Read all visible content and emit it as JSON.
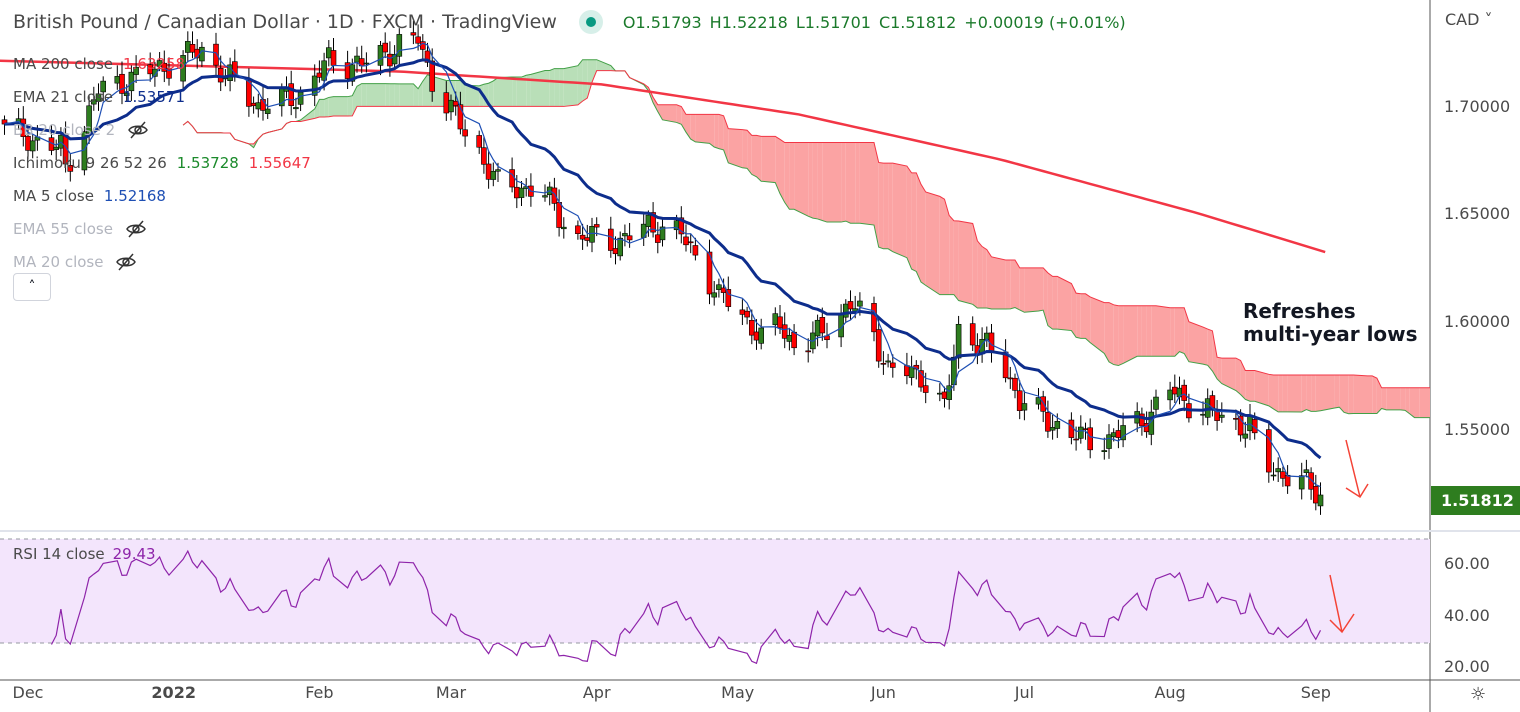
{
  "header": {
    "title": "British Pound / Canadian Dollar · 1D · FXCM · TradingView",
    "open": "O1.51793",
    "high": "H1.52218",
    "low": "L1.51701",
    "close": "C1.51812",
    "change": "+0.00019 (+0.01%)"
  },
  "legend": [
    {
      "label": "MA 200 close",
      "value": "1.63258",
      "color": "#f23645",
      "hidden": false
    },
    {
      "label": "EMA 21 close",
      "value": "1.53571",
      "color": "#0d2d8c",
      "hidden": false
    },
    {
      "label": "BB 20 close 2",
      "value": "",
      "hidden": true
    },
    {
      "label": "Ichimoku 9 26 52 26",
      "value": "1.53728",
      "value2": "1.55647",
      "hidden": false
    },
    {
      "label": "MA 5 close",
      "value": "1.52168",
      "color": "#1e4fb4",
      "hidden": false
    },
    {
      "label": "EMA 55 close",
      "value": "",
      "hidden": true
    },
    {
      "label": "MA 20 close",
      "value": "",
      "hidden": true
    }
  ],
  "currency": "CAD",
  "last_price": "1.51812",
  "annotation": "Refreshes multi-year lows",
  "rsi": {
    "label": "RSI 14 close",
    "value": "29.43",
    "ticks": [
      "60.00",
      "40.00",
      "20.00"
    ]
  },
  "colors": {
    "up": "#2e7d1f",
    "down": "#ff0000",
    "ma200": "#f23645",
    "ema21": "#0d2d8c",
    "ma5": "#1e4fb4",
    "rsi": "#8e24aa"
  },
  "chart_data": {
    "type": "candlestick",
    "title": "British Pound / Canadian Dollar · 1D",
    "x_unit": "days since 2021-12-01",
    "y_ticks": [
      "1.70000",
      "1.65000",
      "1.60000",
      "1.55000"
    ],
    "y_tick_values": [
      1.7,
      1.65,
      1.6,
      1.55
    ],
    "ylim": [
      1.507,
      1.75
    ],
    "x_ticks": [
      {
        "label": "Dec",
        "day": 0
      },
      {
        "label": "2022",
        "day": 31
      },
      {
        "label": "Feb",
        "day": 62
      },
      {
        "label": "Mar",
        "day": 90
      },
      {
        "label": "Apr",
        "day": 121
      },
      {
        "label": "May",
        "day": 151
      },
      {
        "label": "Jun",
        "day": 182
      },
      {
        "label": "Jul",
        "day": 212
      },
      {
        "label": "Aug",
        "day": 243
      },
      {
        "label": "Sep",
        "day": 274
      }
    ],
    "close_path": [
      [
        -5,
        1.69
      ],
      [
        7,
        1.681
      ],
      [
        8,
        1.672
      ],
      [
        15,
        1.708
      ],
      [
        26,
        1.717
      ],
      [
        37,
        1.727
      ],
      [
        43,
        1.713
      ],
      [
        49,
        1.701
      ],
      [
        58,
        1.706
      ],
      [
        64,
        1.722
      ],
      [
        71,
        1.72
      ],
      [
        79,
        1.729
      ],
      [
        83,
        1.732
      ],
      [
        86,
        1.713
      ],
      [
        92,
        1.692
      ],
      [
        96,
        1.68
      ],
      [
        100,
        1.664
      ],
      [
        109,
        1.662
      ],
      [
        117,
        1.639
      ],
      [
        122,
        1.641
      ],
      [
        126,
        1.637
      ],
      [
        132,
        1.646
      ],
      [
        139,
        1.641
      ],
      [
        143,
        1.629
      ],
      [
        147,
        1.611
      ],
      [
        150,
        1.611
      ],
      [
        156,
        1.592
      ],
      [
        160,
        1.601
      ],
      [
        164,
        1.585
      ],
      [
        169,
        1.597
      ],
      [
        175,
        1.608
      ],
      [
        179,
        1.601
      ],
      [
        183,
        1.578
      ],
      [
        190,
        1.576
      ],
      [
        195,
        1.56
      ],
      [
        198,
        1.597
      ],
      [
        203,
        1.59
      ],
      [
        207,
        1.583
      ],
      [
        211,
        1.564
      ],
      [
        217,
        1.555
      ],
      [
        224,
        1.546
      ],
      [
        230,
        1.546
      ],
      [
        234,
        1.551
      ],
      [
        239,
        1.558
      ],
      [
        243,
        1.569
      ],
      [
        249,
        1.56
      ],
      [
        256,
        1.555
      ],
      [
        260,
        1.551
      ],
      [
        262,
        1.536
      ],
      [
        269,
        1.527
      ],
      [
        273,
        1.524
      ],
      [
        276,
        1.518
      ]
    ],
    "ma200_path": [
      [
        -6,
        1.722
      ],
      [
        79,
        1.717
      ],
      [
        122,
        1.711
      ],
      [
        164,
        1.697
      ],
      [
        207,
        1.676
      ],
      [
        249,
        1.651
      ],
      [
        276,
        1.633
      ]
    ],
    "rsi_ylim": [
      20,
      75
    ],
    "rsi_band": [
      30,
      70
    ]
  }
}
